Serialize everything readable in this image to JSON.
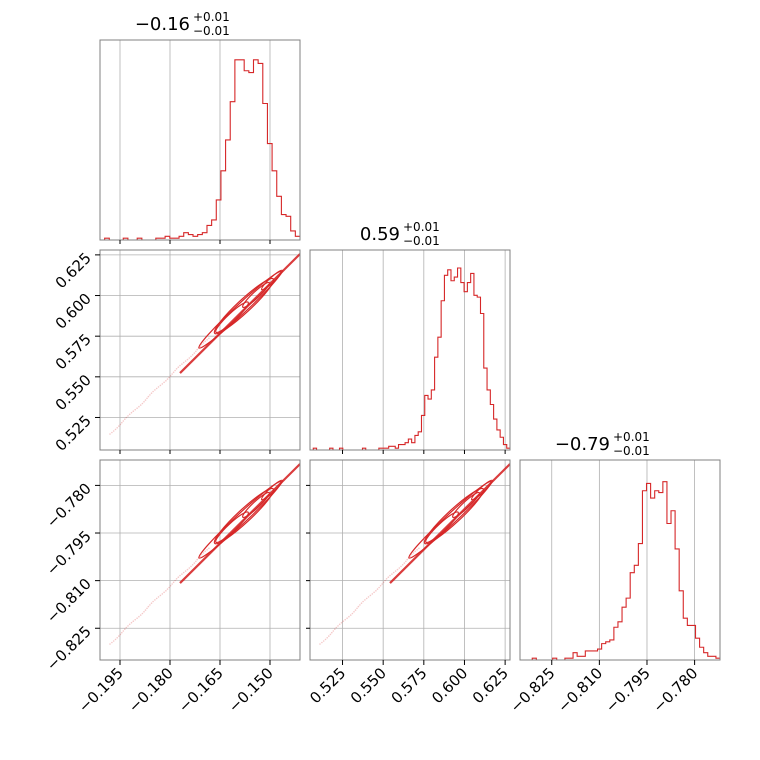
{
  "colors": {
    "hist": "#d62728",
    "contour": "#d62728",
    "grid": "#b0b0b0",
    "frame": "#808080"
  },
  "chart_data": {
    "type": "corner",
    "parameters": [
      {
        "title": "−0.16",
        "title_sup": "+0.01",
        "title_sub": "−0.01",
        "range": [
          -0.201,
          -0.141
        ],
        "ticks": [
          -0.195,
          -0.18,
          -0.165,
          -0.15
        ],
        "tick_labels": [
          "−0.195",
          "−0.180",
          "−0.165",
          "−0.150"
        ],
        "hist": [
          0.0,
          0.01,
          0.0,
          0.0,
          0.0,
          0.01,
          0.0,
          0.0,
          0.01,
          0.0,
          0.0,
          0.0,
          0.01,
          0.01,
          0.02,
          0.01,
          0.01,
          0.02,
          0.04,
          0.03,
          0.02,
          0.03,
          0.04,
          0.08,
          0.11,
          0.22,
          0.38,
          0.55,
          0.76,
          0.99,
          0.99,
          0.93,
          0.92,
          0.99,
          0.97,
          0.75,
          0.53,
          0.38,
          0.24,
          0.14,
          0.13,
          0.05,
          0.02
        ]
      },
      {
        "title": "0.59",
        "title_sup": "+0.01",
        "title_sub": "−0.01",
        "range": [
          0.505,
          0.628
        ],
        "ticks": [
          0.525,
          0.55,
          0.575,
          0.6,
          0.625
        ],
        "tick_labels": [
          "0.525",
          "0.550",
          "0.575",
          "0.600",
          "0.625"
        ],
        "hist": [
          0.0,
          0.01,
          0.0,
          0.0,
          0.0,
          0.0,
          0.01,
          0.0,
          0.0,
          0.01,
          0.0,
          0.0,
          0.0,
          0.0,
          0.0,
          0.0,
          0.01,
          0.0,
          0.0,
          0.0,
          0.0,
          0.01,
          0.01,
          0.01,
          0.02,
          0.02,
          0.01,
          0.03,
          0.03,
          0.04,
          0.06,
          0.04,
          0.08,
          0.1,
          0.19,
          0.3,
          0.28,
          0.33,
          0.51,
          0.62,
          0.82,
          0.96,
          0.99,
          0.93,
          0.95,
          1.0,
          0.92,
          0.87,
          0.92,
          0.97,
          0.85,
          0.84,
          0.75,
          0.45,
          0.33,
          0.25,
          0.17,
          0.11,
          0.07,
          0.03,
          0.01
        ]
      },
      {
        "title": "−0.79",
        "title_sup": "+0.01",
        "title_sub": "−0.01",
        "range": [
          -0.835,
          -0.772
        ],
        "ticks": [
          -0.825,
          -0.81,
          -0.795,
          -0.78
        ],
        "tick_labels": [
          "−0.825",
          "−0.810",
          "−0.795",
          "−0.780"
        ],
        "hist": [
          0.0,
          0.0,
          0.0,
          0.01,
          0.0,
          0.0,
          0.0,
          0.0,
          0.01,
          0.0,
          0.0,
          0.01,
          0.01,
          0.04,
          0.02,
          0.02,
          0.05,
          0.05,
          0.05,
          0.06,
          0.09,
          0.1,
          0.11,
          0.18,
          0.21,
          0.29,
          0.34,
          0.48,
          0.52,
          0.64,
          0.93,
          0.97,
          0.89,
          0.93,
          0.92,
          0.98,
          0.75,
          0.82,
          0.61,
          0.38,
          0.23,
          0.19,
          0.19,
          0.12,
          0.07,
          0.04,
          0.02,
          0.02,
          0.01
        ]
      }
    ],
    "contours": [
      {
        "x_param": 0,
        "y_param": 1,
        "levels": [
          0.004,
          0.003,
          0.0025,
          0.0015,
          0.001
        ]
      },
      {
        "x_param": 0,
        "y_param": 2,
        "levels": [
          0.004,
          0.003,
          0.0025,
          0.0015,
          0.001
        ]
      },
      {
        "x_param": 1,
        "y_param": 2,
        "levels": [
          0.004,
          0.003,
          0.0025,
          0.0015,
          0.001
        ]
      }
    ]
  }
}
